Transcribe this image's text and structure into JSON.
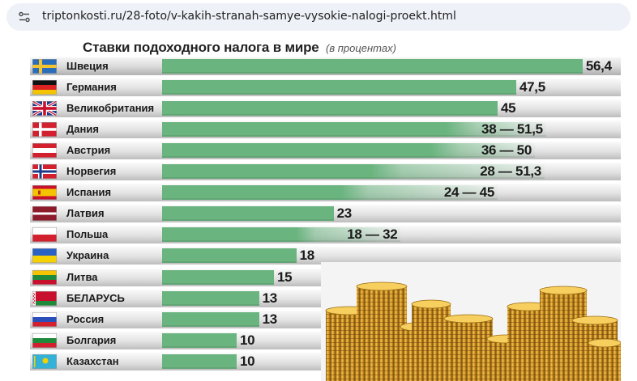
{
  "browser": {
    "url": "triptonkosti.ru/28-foto/v-kakih-stranah-samye-vysokie-nalogi-proekt.html"
  },
  "infographic": {
    "title": "Ставки подоходного налога в мире",
    "subtitle": "(в процентах)",
    "rows": [
      {
        "country": "Швеция",
        "value": "56,4",
        "flag": "sweden"
      },
      {
        "country": "Германия",
        "value": "47,5",
        "flag": "germany"
      },
      {
        "country": "Великобритания",
        "value": "45",
        "flag": "uk"
      },
      {
        "country": "Дания",
        "value": "38 — 51,5",
        "flag": "denmark"
      },
      {
        "country": "Австрия",
        "value": "36 — 50",
        "flag": "austria"
      },
      {
        "country": "Норвегия",
        "value": "28 — 51,3",
        "flag": "norway"
      },
      {
        "country": "Испания",
        "value": "24 — 45",
        "flag": "spain"
      },
      {
        "country": "Латвия",
        "value": "23",
        "flag": "latvia"
      },
      {
        "country": "Польша",
        "value": "18 — 32",
        "flag": "poland"
      },
      {
        "country": "Украина",
        "value": "18",
        "flag": "ukraine"
      },
      {
        "country": "Литва",
        "value": "15",
        "flag": "lithuania"
      },
      {
        "country": "БЕЛАРУСЬ",
        "value": "13",
        "flag": "belarus"
      },
      {
        "country": "Россия",
        "value": "13",
        "flag": "russia"
      },
      {
        "country": "Болгария",
        "value": "10",
        "flag": "bulgaria"
      },
      {
        "country": "Казахстан",
        "value": "10",
        "flag": "kazakhstan"
      }
    ]
  },
  "chart_data": {
    "type": "bar",
    "title": "Ставки подоходного налога в мире",
    "subtitle": "(в процентах)",
    "categories": [
      "Швеция",
      "Германия",
      "Великобритания",
      "Дания",
      "Австрия",
      "Норвегия",
      "Испания",
      "Латвия",
      "Польша",
      "Украина",
      "Литва",
      "БЕЛАРУСЬ",
      "Россия",
      "Болгария",
      "Казахстан"
    ],
    "min_values": [
      56.4,
      47.5,
      45,
      38,
      36,
      28,
      24,
      23,
      18,
      18,
      15,
      13,
      13,
      10,
      10
    ],
    "max_values": [
      56.4,
      47.5,
      45,
      51.5,
      50,
      51.3,
      45,
      23,
      32,
      18,
      15,
      13,
      13,
      10,
      10
    ],
    "labels": [
      "56,4",
      "47,5",
      "45",
      "38 — 51,5",
      "36 — 50",
      "28 — 51,3",
      "24 — 45",
      "23",
      "18 — 32",
      "18",
      "15",
      "13",
      "13",
      "10",
      "10"
    ],
    "colors": {
      "bar": "#6ab47f"
    }
  }
}
